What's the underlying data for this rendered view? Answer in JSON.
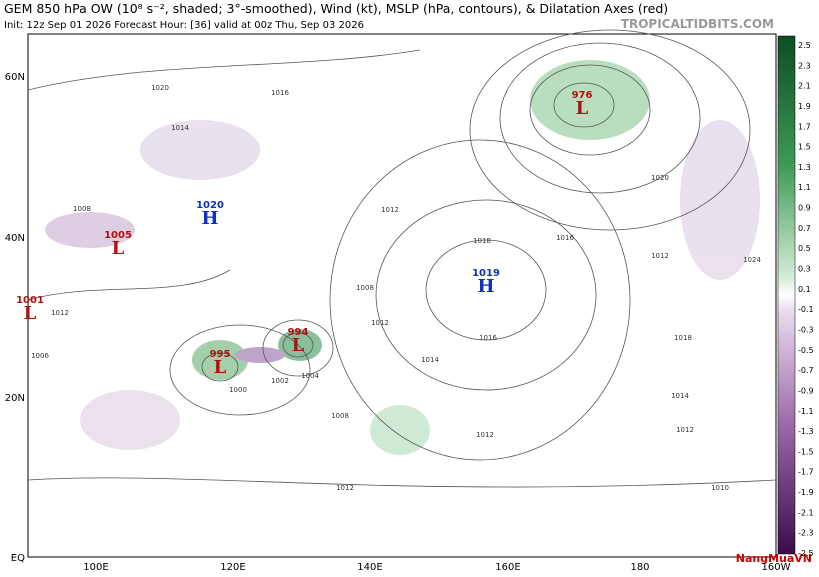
{
  "header": {
    "title": "GEM 850 hPa OW (10⁸ s⁻², shaded; 3°-smoothed), Wind (kt), MSLP (hPa, contours), & Dilatation Axes (red)",
    "subtitle": "Init: 12z Sep 01 2026   Forecast Hour: [36]   valid at 00z Thu, Sep 03 2026",
    "source": "TROPICALTIDBITS.COM"
  },
  "map": {
    "lat_labels": [
      "60N",
      "40N",
      "20N",
      "EQ"
    ],
    "lon_labels": [
      "100E",
      "120E",
      "140E",
      "160E",
      "180",
      "160W"
    ],
    "centers": [
      {
        "symbol": "L",
        "value": "976"
      },
      {
        "symbol": "L",
        "value": "994"
      },
      {
        "symbol": "L",
        "value": "995"
      },
      {
        "symbol": "H",
        "value": "1019"
      },
      {
        "symbol": "H",
        "value": "1020"
      },
      {
        "symbol": "L",
        "value": "1005"
      },
      {
        "symbol": "L",
        "value": "1001"
      }
    ],
    "isobar_labels": [
      "1020",
      "1016",
      "1014",
      "1012",
      "1008",
      "1004",
      "1000",
      "1018",
      "1014",
      "1012",
      "1016",
      "1012",
      "1008",
      "1012",
      "1020",
      "1024",
      "1018",
      "1014",
      "1012",
      "1010",
      "1012",
      "1006",
      "1002",
      "1008",
      "1012",
      "1016"
    ]
  },
  "colorbar": {
    "labels": [
      "2.5",
      "2.3",
      "2.1",
      "1.9",
      "1.7",
      "1.5",
      "1.3",
      "1.1",
      "0.9",
      "0.7",
      "0.5",
      "0.3",
      "0.1",
      "-0.1",
      "-0.3",
      "-0.5",
      "-0.7",
      "-0.9",
      "-1.1",
      "-1.3",
      "-1.5",
      "-1.7",
      "-1.9",
      "-2.1",
      "-2.3",
      "-2.5"
    ]
  },
  "watermark": "NangMuaVN"
}
